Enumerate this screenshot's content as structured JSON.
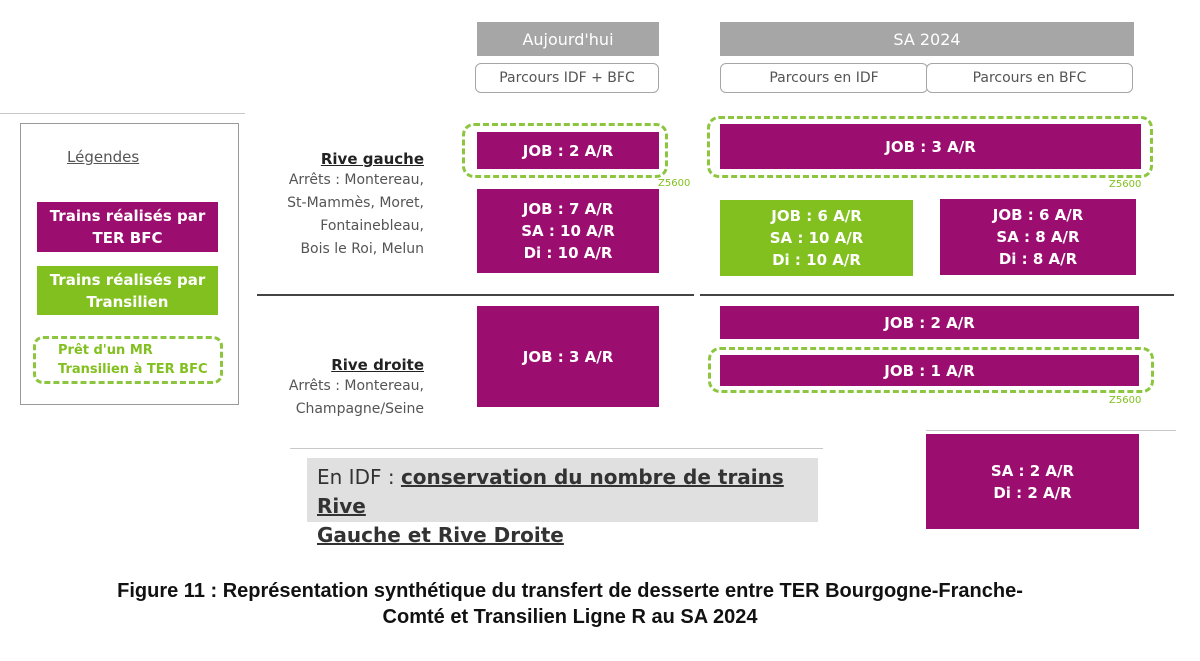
{
  "headers": {
    "today": "Aujourd'hui",
    "sa2024": "SA 2024",
    "today_sub": "Parcours IDF + BFC",
    "sa_sub_idf": "Parcours en IDF",
    "sa_sub_bfc": "Parcours en BFC"
  },
  "legend": {
    "title": "Légendes",
    "ter_line1": "Trains réalisés par",
    "ter_line2": "TER BFC",
    "transilien_line1": "Trains réalisés par",
    "transilien_line2": "Transilien",
    "pret_line1": "Prêt d'un MR",
    "pret_line2": "Transilien à TER BFC"
  },
  "rive_gauche": {
    "title": "Rive gauche",
    "stops": [
      "Arrêts : Montereau,",
      "St-Mammès, Moret,",
      "Fontainebleau,",
      "Bois le Roi, Melun"
    ]
  },
  "rive_droite": {
    "title": "Rive droite",
    "stops": [
      "Arrêts :  Montereau,",
      "Champagne/Seine"
    ]
  },
  "boxes": {
    "rg_today_top": "JOB : 2 A/R",
    "rg_today_bottom": [
      "JOB : 7 A/R",
      "SA : 10 A/R",
      "Di : 10 A/R"
    ],
    "rg_sa_top": "JOB : 3 A/R",
    "rg_sa_idf": [
      "JOB : 6 A/R",
      "SA : 10 A/R",
      "Di : 10 A/R"
    ],
    "rg_sa_bfc": [
      "JOB : 6 A/R",
      "SA : 8 A/R",
      "Di : 8 A/R"
    ],
    "rd_today": "JOB : 3 A/R",
    "rd_sa_1": "JOB : 2 A/R",
    "rd_sa_2": "JOB : 1 A/R",
    "rd_sa_bfc": [
      "SA : 2 A/R",
      "Di : 2 A/R"
    ]
  },
  "z5600": "Z5600",
  "note": {
    "prefix": "En IDF : ",
    "line1": "conservation du nombre de trains Rive",
    "line2": "Gauche et Rive Droite"
  },
  "caption": {
    "line1": "Figure 11 : Représentation synthétique du transfert de desserte entre TER Bourgogne-Franche-",
    "line2": "Comté et Transilien Ligne R au SA 2024"
  },
  "colors": {
    "ter_bfc": "#9b0e6f",
    "transilien": "#82c01f",
    "header_grey": "#a6a6a6"
  }
}
